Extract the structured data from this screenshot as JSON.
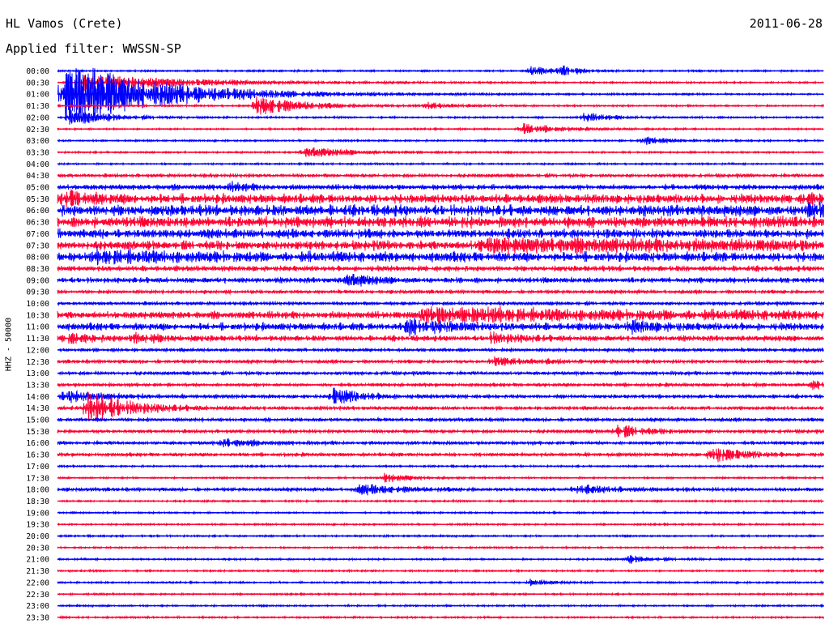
{
  "header": {
    "station": "HL Vamos (Crete)",
    "date": "2011-06-28",
    "filter_label": "Applied filter: WWSSN-SP"
  },
  "chart_data": {
    "type": "line",
    "ylabel": "HHZ - 50000",
    "row_labels": [
      "00:00",
      "00:30",
      "01:00",
      "01:30",
      "02:00",
      "02:30",
      "03:00",
      "03:30",
      "04:00",
      "04:30",
      "05:00",
      "05:30",
      "06:00",
      "06:30",
      "07:00",
      "07:30",
      "08:00",
      "08:30",
      "09:00",
      "09:30",
      "10:00",
      "10:30",
      "11:00",
      "11:30",
      "12:00",
      "12:30",
      "13:00",
      "13:30",
      "14:00",
      "14:30",
      "15:00",
      "15:30",
      "16:00",
      "16:30",
      "17:00",
      "17:30",
      "18:00",
      "18:30",
      "19:00",
      "19:30",
      "20:00",
      "20:30",
      "21:00",
      "21:30",
      "22:00",
      "22:30",
      "23:00",
      "23:30"
    ],
    "row_minutes": 30,
    "colors": [
      "#0000ff",
      "#ff0033"
    ],
    "noise_level": [
      1,
      1,
      1,
      1,
      1,
      1,
      1,
      1,
      1,
      2,
      3,
      5,
      6,
      6,
      5,
      5,
      5,
      3,
      3,
      2,
      2,
      4,
      4,
      3,
      2,
      2,
      2,
      2,
      2,
      2,
      2,
      2,
      2,
      2,
      1,
      1,
      2,
      1,
      1,
      1,
      1,
      1,
      1,
      1,
      1,
      1,
      1,
      1
    ],
    "events": [
      {
        "row": 0,
        "minute": 18.5,
        "amp": 6,
        "duration": 0.8
      },
      {
        "row": 0,
        "minute": 19.7,
        "amp": 6,
        "duration": 0.6
      },
      {
        "row": 1,
        "minute": 1.0,
        "amp": 10,
        "duration": 4
      },
      {
        "row": 2,
        "minute": 0.2,
        "amp": 45,
        "duration": 3.5
      },
      {
        "row": 3,
        "minute": 7.8,
        "amp": 12,
        "duration": 1.8
      },
      {
        "row": 3,
        "minute": 14.5,
        "amp": 5,
        "duration": 0.8
      },
      {
        "row": 4,
        "minute": 0.5,
        "amp": 10,
        "duration": 1.5
      },
      {
        "row": 4,
        "minute": 20.6,
        "amp": 6,
        "duration": 1.0
      },
      {
        "row": 5,
        "minute": 18.2,
        "amp": 7,
        "duration": 1.3
      },
      {
        "row": 6,
        "minute": 23.0,
        "amp": 6,
        "duration": 0.8
      },
      {
        "row": 7,
        "minute": 9.7,
        "amp": 6,
        "duration": 2.0
      },
      {
        "row": 10,
        "minute": 6.8,
        "amp": 5,
        "duration": 0.6
      },
      {
        "row": 11,
        "minute": 0.3,
        "amp": 8,
        "duration": 1.2
      },
      {
        "row": 11,
        "minute": 29.3,
        "amp": 5,
        "duration": 0.8
      },
      {
        "row": 12,
        "minute": 29.2,
        "amp": 6,
        "duration": 1.5
      },
      {
        "row": 15,
        "minute": 16.5,
        "amp": 6,
        "duration": 12
      },
      {
        "row": 16,
        "minute": 1.5,
        "amp": 6,
        "duration": 6
      },
      {
        "row": 18,
        "minute": 11.3,
        "amp": 7,
        "duration": 1.0
      },
      {
        "row": 21,
        "minute": 14.2,
        "amp": 8,
        "duration": 11
      },
      {
        "row": 22,
        "minute": 13.6,
        "amp": 10,
        "duration": 1.5
      },
      {
        "row": 22,
        "minute": 22.5,
        "amp": 6,
        "duration": 1.0
      },
      {
        "row": 23,
        "minute": 0.3,
        "amp": 6,
        "duration": 1.0
      },
      {
        "row": 23,
        "minute": 3.0,
        "amp": 6,
        "duration": 1.0
      },
      {
        "row": 23,
        "minute": 16.9,
        "amp": 6,
        "duration": 1.2
      },
      {
        "row": 25,
        "minute": 17.1,
        "amp": 5,
        "duration": 1.5
      },
      {
        "row": 27,
        "minute": 29.5,
        "amp": 6,
        "duration": 0.5
      },
      {
        "row": 28,
        "minute": 0.1,
        "amp": 8,
        "duration": 1.5
      },
      {
        "row": 28,
        "minute": 10.8,
        "amp": 10,
        "duration": 1.2
      },
      {
        "row": 29,
        "minute": 1.2,
        "amp": 22,
        "duration": 1.5
      },
      {
        "row": 31,
        "minute": 21.9,
        "amp": 8,
        "duration": 1.0
      },
      {
        "row": 32,
        "minute": 6.5,
        "amp": 5,
        "duration": 1.0
      },
      {
        "row": 33,
        "minute": 25.6,
        "amp": 10,
        "duration": 1.2
      },
      {
        "row": 35,
        "minute": 12.8,
        "amp": 6,
        "duration": 1.0
      },
      {
        "row": 36,
        "minute": 11.8,
        "amp": 6,
        "duration": 1.5
      },
      {
        "row": 36,
        "minute": 20.3,
        "amp": 5,
        "duration": 1.5
      },
      {
        "row": 42,
        "minute": 22.3,
        "amp": 5,
        "duration": 1.0
      },
      {
        "row": 44,
        "minute": 18.5,
        "amp": 4,
        "duration": 0.8
      }
    ]
  }
}
